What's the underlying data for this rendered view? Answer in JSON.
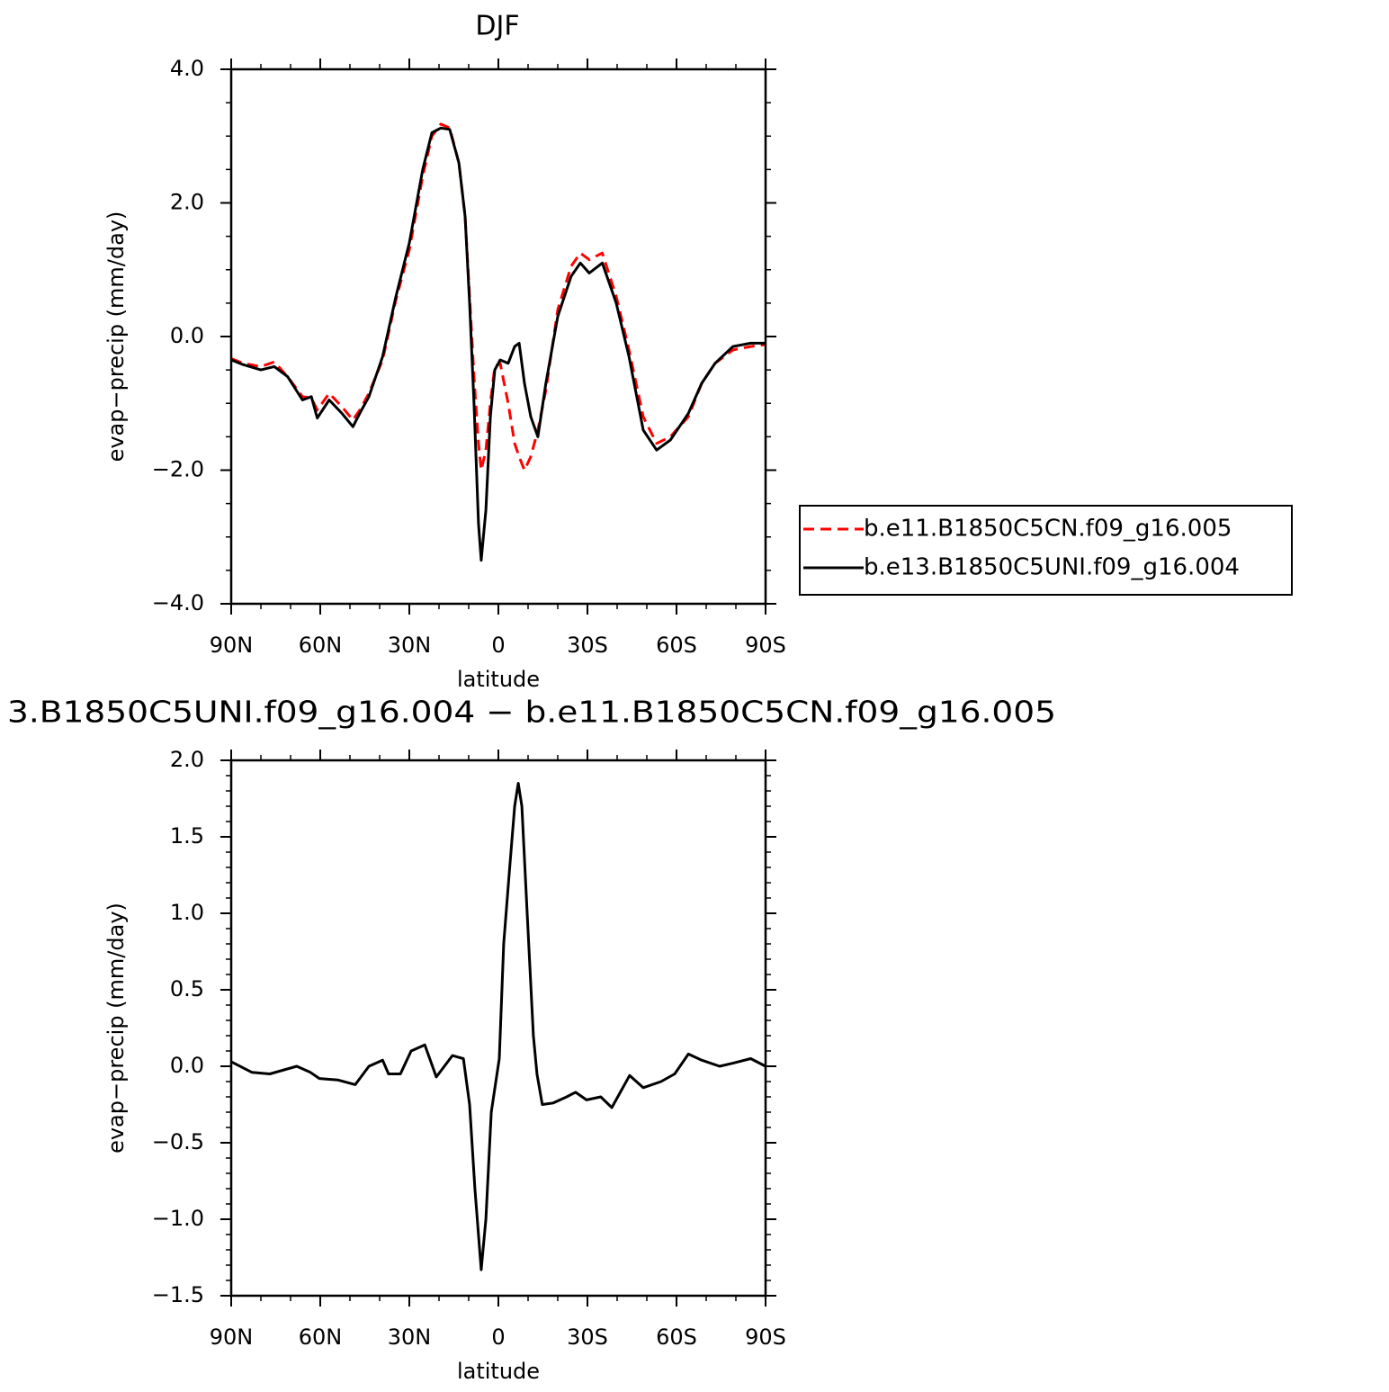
{
  "chart_data": [
    {
      "type": "line",
      "title": "DJF",
      "xlabel": "latitude",
      "ylabel": "evap−precip (mm/day)",
      "legend": "outside-right",
      "x": [
        90,
        86,
        80,
        75.5,
        71,
        66,
        63,
        61,
        57,
        52.7,
        49,
        46.7,
        43.6,
        39,
        34.5,
        30,
        25.5,
        22.4,
        19.4,
        16.4,
        13.3,
        11.2,
        9.7,
        8.2,
        6.7,
        5.8,
        4.2,
        2.7,
        1.2,
        -0.6,
        -3.3,
        -5.5,
        -7,
        -8.8,
        -10.9,
        -13.3,
        -16,
        -20,
        -24.5,
        -27.6,
        -30.6,
        -35,
        -39.7,
        -44,
        -48.8,
        -53.3,
        -57.9,
        -64,
        -68.5,
        -73,
        -79,
        -85,
        -90
      ],
      "series": [
        {
          "name": "b.e11.B1850C5CN.f09_g16.005",
          "color": "#ff0000",
          "linestyle": "dashed",
          "values": [
            -0.33,
            -0.4,
            -0.45,
            -0.38,
            -0.6,
            -0.9,
            -0.92,
            -1.1,
            -0.85,
            -1.05,
            -1.25,
            -1.1,
            -0.85,
            -0.35,
            0.55,
            1.3,
            2.4,
            3.0,
            3.18,
            3.12,
            2.6,
            1.8,
            0.6,
            -0.6,
            -1.6,
            -2.0,
            -1.7,
            -1.0,
            -0.45,
            -0.4,
            -1.0,
            -1.6,
            -1.8,
            -2.0,
            -1.8,
            -1.4,
            -0.8,
            0.4,
            1.05,
            1.25,
            1.15,
            1.25,
            0.6,
            -0.2,
            -1.2,
            -1.6,
            -1.5,
            -1.2,
            -0.7,
            -0.4,
            -0.2,
            -0.15,
            -0.12
          ]
        },
        {
          "name": "b.e13.B1850C5UNI.f09_g16.004",
          "color": "#000000",
          "linestyle": "solid",
          "values": [
            -0.35,
            -0.42,
            -0.5,
            -0.45,
            -0.6,
            -0.95,
            -0.9,
            -1.22,
            -0.95,
            -1.15,
            -1.35,
            -1.15,
            -0.9,
            -0.3,
            0.6,
            1.4,
            2.5,
            3.05,
            3.12,
            3.1,
            2.6,
            1.8,
            0.5,
            -1.0,
            -2.8,
            -3.35,
            -2.6,
            -1.2,
            -0.5,
            -0.35,
            -0.4,
            -0.15,
            -0.1,
            -0.7,
            -1.2,
            -1.5,
            -0.7,
            0.3,
            0.9,
            1.1,
            0.95,
            1.1,
            0.5,
            -0.3,
            -1.4,
            -1.7,
            -1.55,
            -1.15,
            -0.7,
            -0.4,
            -0.15,
            -0.1,
            -0.1
          ]
        }
      ],
      "xlim": [
        90,
        -90
      ],
      "xticks": [
        {
          "value": 90,
          "label": "90N"
        },
        {
          "value": 60,
          "label": "60N"
        },
        {
          "value": 30,
          "label": "30N"
        },
        0,
        {
          "value": -30,
          "label": "30S"
        },
        {
          "value": -60,
          "label": "60S"
        },
        {
          "value": -90,
          "label": "90S"
        }
      ],
      "xminorticks": [
        80,
        70,
        50,
        40,
        20,
        10,
        -10,
        -20,
        -40,
        -50,
        -70,
        -80
      ],
      "ylim": [
        -4,
        4
      ],
      "yticks": [
        {
          "value": 4,
          "label": "4.0"
        },
        {
          "value": 2,
          "label": "2.0"
        },
        {
          "value": 0,
          "label": "0.0"
        },
        {
          "value": -2,
          "label": "−2.0"
        },
        {
          "value": -4,
          "label": "−4.0"
        }
      ],
      "yminorticks": [
        -3.5,
        -3,
        -2.5,
        -1.5,
        -1,
        -0.5,
        0.5,
        1,
        1.5,
        2.5,
        3,
        3.5
      ]
    },
    {
      "type": "line",
      "title": "3.B1850C5UNI.f09_g16.004 − b.e11.B1850C5CN.f09_g16.005",
      "xlabel": "latitude",
      "ylabel": "evap−precip (mm/day)",
      "x": [
        90,
        83,
        77,
        67.9,
        63.3,
        60.3,
        54,
        48.2,
        43.6,
        39,
        37,
        33,
        29.4,
        24.8,
        20.9,
        15.5,
        11.8,
        9.7,
        7.9,
        5.8,
        4.2,
        2.4,
        -0.3,
        -1.8,
        -3.6,
        -5.5,
        -6.7,
        -7.9,
        -9.7,
        -11.8,
        -13,
        -14.8,
        -18.5,
        -23,
        -26,
        -29.7,
        -34.5,
        -38.2,
        -44.2,
        -48.8,
        -54.8,
        -59.4,
        -64,
        -68.5,
        -74.5,
        -79,
        -85,
        -90
      ],
      "values": [
        0.03,
        -0.04,
        -0.05,
        0.0,
        -0.04,
        -0.08,
        -0.09,
        -0.12,
        0.0,
        0.04,
        -0.05,
        -0.05,
        0.1,
        0.14,
        -0.07,
        0.07,
        0.05,
        -0.25,
        -0.8,
        -1.33,
        -1.0,
        -0.3,
        0.05,
        0.8,
        1.25,
        1.7,
        1.85,
        1.7,
        1.0,
        0.2,
        -0.05,
        -0.25,
        -0.24,
        -0.2,
        -0.17,
        -0.22,
        -0.2,
        -0.27,
        -0.06,
        -0.14,
        -0.1,
        -0.05,
        0.08,
        0.04,
        0.0,
        0.02,
        0.05,
        0.0
      ],
      "color": "#000000",
      "linestyle": "solid",
      "xlim": [
        90,
        -90
      ],
      "xticks": [
        {
          "value": 90,
          "label": "90N"
        },
        {
          "value": 60,
          "label": "60N"
        },
        {
          "value": 30,
          "label": "30N"
        },
        0,
        {
          "value": -30,
          "label": "30S"
        },
        {
          "value": -60,
          "label": "60S"
        },
        {
          "value": -90,
          "label": "90S"
        }
      ],
      "xminorticks": [
        80,
        70,
        50,
        40,
        20,
        10,
        -10,
        -20,
        -40,
        -50,
        -70,
        -80
      ],
      "ylim": [
        -1.5,
        2
      ],
      "yticks": [
        {
          "value": 2,
          "label": "2.0"
        },
        {
          "value": 1.5,
          "label": "1.5"
        },
        {
          "value": 1,
          "label": "1.0"
        },
        {
          "value": 0.5,
          "label": "0.5"
        },
        {
          "value": 0,
          "label": "0.0"
        },
        {
          "value": -0.5,
          "label": "−0.5"
        },
        {
          "value": -1,
          "label": "−1.0"
        },
        {
          "value": -1.5,
          "label": "−1.5"
        }
      ],
      "yminorticks": [
        -1.4,
        -1.3,
        -1.2,
        -1.1,
        -0.9,
        -0.8,
        -0.7,
        -0.6,
        -0.4,
        -0.3,
        -0.2,
        -0.1,
        0.1,
        0.2,
        0.3,
        0.4,
        0.6,
        0.7,
        0.8,
        0.9,
        1.1,
        1.2,
        1.3,
        1.4,
        1.6,
        1.7,
        1.8,
        1.9
      ]
    }
  ]
}
